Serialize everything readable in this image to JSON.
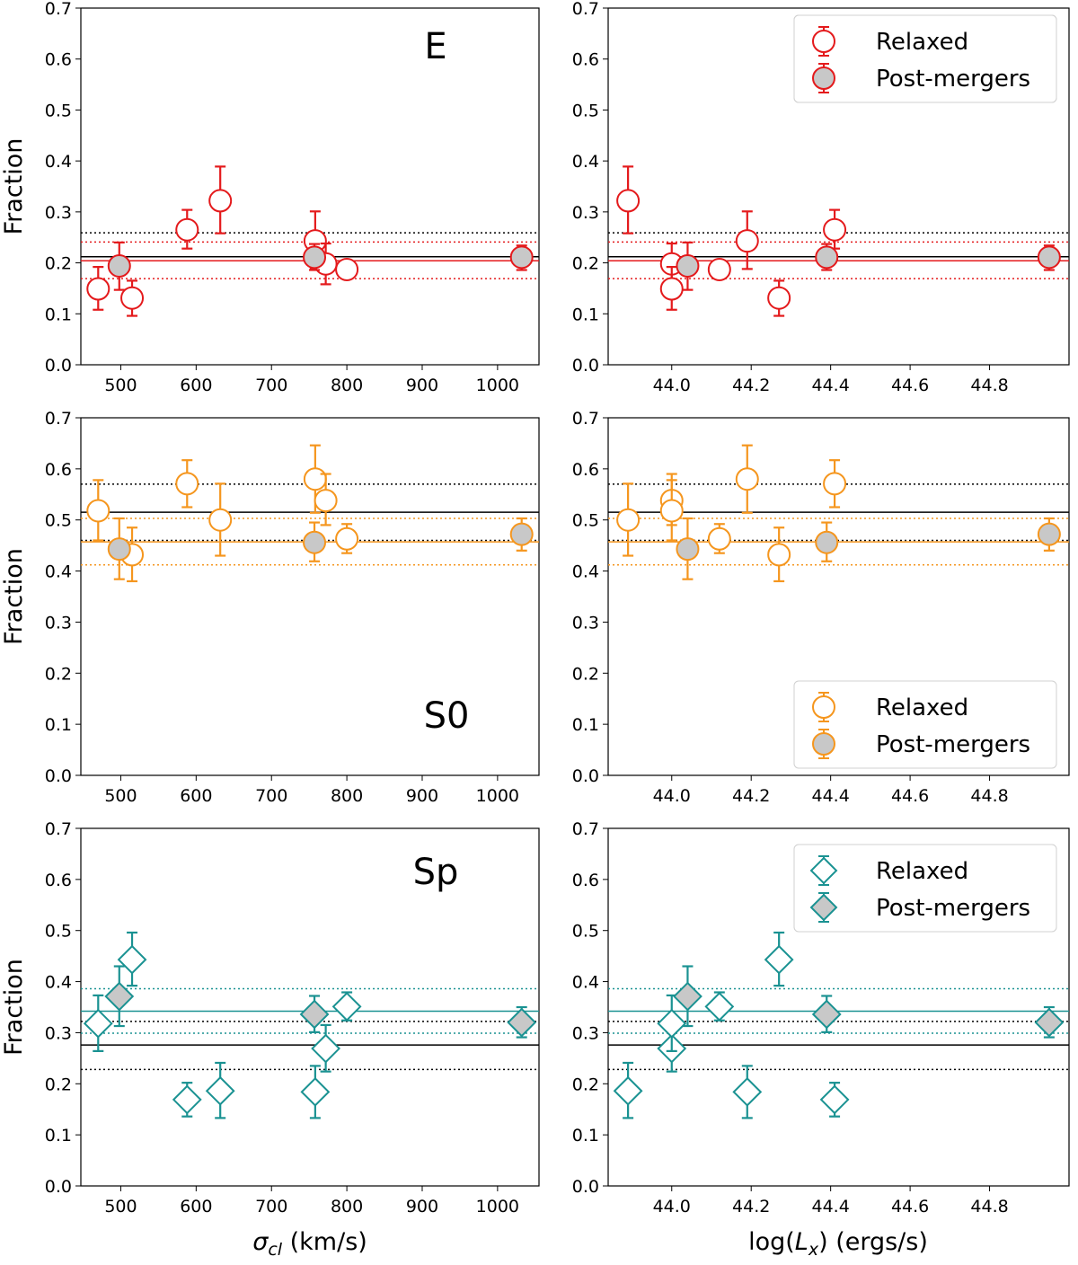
{
  "figure": {
    "xlabels": [
      "σ_cl (km/s)",
      "log(L_x) (ergs/s)"
    ]
  },
  "legend": {
    "relaxed": "Relaxed",
    "postmergers": "Post-mergers"
  },
  "chart_data": [
    {
      "type": "scatter",
      "row": 0,
      "col": 0,
      "panel_label": "E",
      "color": "#e41a1c",
      "marker": "circle",
      "ylabel": "Fraction",
      "xlabel": "",
      "xlim": [
        447,
        1055
      ],
      "ylim": [
        0,
        0.7
      ],
      "xticks": [
        500,
        600,
        700,
        800,
        900,
        1000
      ],
      "yticks": [
        0.0,
        0.1,
        0.2,
        0.3,
        0.4,
        0.5,
        0.6,
        0.7
      ],
      "relaxed": [
        {
          "x": 470,
          "y": 0.149,
          "lo": 0.108,
          "hi": 0.192
        },
        {
          "x": 515,
          "y": 0.131,
          "lo": 0.096,
          "hi": 0.165
        },
        {
          "x": 588,
          "y": 0.265,
          "lo": 0.228,
          "hi": 0.304
        },
        {
          "x": 632,
          "y": 0.322,
          "lo": 0.258,
          "hi": 0.389
        },
        {
          "x": 758,
          "y": 0.243,
          "lo": 0.188,
          "hi": 0.301
        },
        {
          "x": 772,
          "y": 0.198,
          "lo": 0.158,
          "hi": 0.238
        },
        {
          "x": 800,
          "y": 0.187,
          "lo": 0.187,
          "hi": 0.187
        }
      ],
      "postmergers": [
        {
          "x": 498,
          "y": 0.194,
          "lo": 0.147,
          "hi": 0.24
        },
        {
          "x": 757,
          "y": 0.211,
          "lo": 0.186,
          "hi": 0.237
        },
        {
          "x": 1032,
          "y": 0.211,
          "lo": 0.186,
          "hi": 0.234
        }
      ],
      "hlines": [
        {
          "y": 0.212,
          "color": "#000000",
          "style": "solid"
        },
        {
          "y": 0.259,
          "color": "#000000",
          "style": "dotted"
        },
        {
          "y": 0.204,
          "color": "#e41a1c",
          "style": "solid"
        },
        {
          "y": 0.241,
          "color": "#e41a1c",
          "style": "dotted"
        },
        {
          "y": 0.169,
          "color": "#e41a1c",
          "style": "dotted"
        }
      ],
      "legend": true
    },
    {
      "type": "scatter",
      "row": 0,
      "col": 1,
      "panel_label": "",
      "color": "#e41a1c",
      "marker": "circle",
      "ylabel": "",
      "xlabel": "",
      "xlim": [
        43.84,
        45.0
      ],
      "ylim": [
        0,
        0.7
      ],
      "xticks": [
        44.0,
        44.2,
        44.4,
        44.6,
        44.8
      ],
      "yticks": [
        0.0,
        0.1,
        0.2,
        0.3,
        0.4,
        0.5,
        0.6,
        0.7
      ],
      "relaxed": [
        {
          "x": 43.89,
          "y": 0.322,
          "lo": 0.258,
          "hi": 0.389
        },
        {
          "x": 44.0,
          "y": 0.198,
          "lo": 0.158,
          "hi": 0.238
        },
        {
          "x": 44.0,
          "y": 0.149,
          "lo": 0.108,
          "hi": 0.192
        },
        {
          "x": 44.12,
          "y": 0.187,
          "lo": 0.187,
          "hi": 0.187
        },
        {
          "x": 44.19,
          "y": 0.243,
          "lo": 0.188,
          "hi": 0.301
        },
        {
          "x": 44.27,
          "y": 0.131,
          "lo": 0.096,
          "hi": 0.165
        },
        {
          "x": 44.41,
          "y": 0.265,
          "lo": 0.228,
          "hi": 0.304
        }
      ],
      "postmergers": [
        {
          "x": 44.04,
          "y": 0.194,
          "lo": 0.147,
          "hi": 0.24
        },
        {
          "x": 44.39,
          "y": 0.211,
          "lo": 0.186,
          "hi": 0.237
        },
        {
          "x": 44.95,
          "y": 0.211,
          "lo": 0.186,
          "hi": 0.234
        }
      ],
      "hlines": [
        {
          "y": 0.212,
          "color": "#000000",
          "style": "solid"
        },
        {
          "y": 0.259,
          "color": "#000000",
          "style": "dotted"
        },
        {
          "y": 0.204,
          "color": "#e41a1c",
          "style": "solid"
        },
        {
          "y": 0.241,
          "color": "#e41a1c",
          "style": "dotted"
        },
        {
          "y": 0.169,
          "color": "#e41a1c",
          "style": "dotted"
        }
      ],
      "legend": true
    },
    {
      "type": "scatter",
      "row": 1,
      "col": 0,
      "panel_label": "S0",
      "color": "#f5961e",
      "marker": "circle",
      "ylabel": "Fraction",
      "xlabel": "",
      "xlim": [
        447,
        1055
      ],
      "ylim": [
        0,
        0.7
      ],
      "xticks": [
        500,
        600,
        700,
        800,
        900,
        1000
      ],
      "yticks": [
        0.0,
        0.1,
        0.2,
        0.3,
        0.4,
        0.5,
        0.6,
        0.7
      ],
      "relaxed": [
        {
          "x": 470,
          "y": 0.518,
          "lo": 0.46,
          "hi": 0.578
        },
        {
          "x": 515,
          "y": 0.432,
          "lo": 0.38,
          "hi": 0.485
        },
        {
          "x": 588,
          "y": 0.571,
          "lo": 0.525,
          "hi": 0.617
        },
        {
          "x": 632,
          "y": 0.5,
          "lo": 0.43,
          "hi": 0.571
        },
        {
          "x": 758,
          "y": 0.58,
          "lo": 0.514,
          "hi": 0.646
        },
        {
          "x": 772,
          "y": 0.538,
          "lo": 0.49,
          "hi": 0.59
        },
        {
          "x": 800,
          "y": 0.463,
          "lo": 0.435,
          "hi": 0.492
        }
      ],
      "postmergers": [
        {
          "x": 498,
          "y": 0.443,
          "lo": 0.384,
          "hi": 0.503
        },
        {
          "x": 757,
          "y": 0.456,
          "lo": 0.419,
          "hi": 0.495
        },
        {
          "x": 1032,
          "y": 0.472,
          "lo": 0.44,
          "hi": 0.503
        }
      ],
      "hlines": [
        {
          "y": 0.515,
          "color": "#000000",
          "style": "solid"
        },
        {
          "y": 0.57,
          "color": "#000000",
          "style": "dotted"
        },
        {
          "y": 0.46,
          "color": "#000000",
          "style": "dotted"
        },
        {
          "y": 0.457,
          "color": "#f5961e",
          "style": "solid"
        },
        {
          "y": 0.503,
          "color": "#f5961e",
          "style": "dotted"
        },
        {
          "y": 0.412,
          "color": "#f5961e",
          "style": "dotted"
        }
      ],
      "legend": false
    },
    {
      "type": "scatter",
      "row": 1,
      "col": 1,
      "panel_label": "",
      "color": "#f5961e",
      "marker": "circle",
      "ylabel": "",
      "xlabel": "",
      "xlim": [
        43.84,
        45.0
      ],
      "ylim": [
        0,
        0.7
      ],
      "xticks": [
        44.0,
        44.2,
        44.4,
        44.6,
        44.8
      ],
      "yticks": [
        0.0,
        0.1,
        0.2,
        0.3,
        0.4,
        0.5,
        0.6,
        0.7
      ],
      "relaxed": [
        {
          "x": 43.89,
          "y": 0.5,
          "lo": 0.43,
          "hi": 0.571
        },
        {
          "x": 44.0,
          "y": 0.538,
          "lo": 0.49,
          "hi": 0.59
        },
        {
          "x": 44.0,
          "y": 0.518,
          "lo": 0.46,
          "hi": 0.578
        },
        {
          "x": 44.12,
          "y": 0.463,
          "lo": 0.435,
          "hi": 0.492
        },
        {
          "x": 44.19,
          "y": 0.58,
          "lo": 0.514,
          "hi": 0.646
        },
        {
          "x": 44.27,
          "y": 0.432,
          "lo": 0.38,
          "hi": 0.485
        },
        {
          "x": 44.41,
          "y": 0.571,
          "lo": 0.525,
          "hi": 0.617
        }
      ],
      "postmergers": [
        {
          "x": 44.04,
          "y": 0.443,
          "lo": 0.384,
          "hi": 0.503
        },
        {
          "x": 44.39,
          "y": 0.456,
          "lo": 0.419,
          "hi": 0.495
        },
        {
          "x": 44.95,
          "y": 0.472,
          "lo": 0.44,
          "hi": 0.503
        }
      ],
      "hlines": [
        {
          "y": 0.515,
          "color": "#000000",
          "style": "solid"
        },
        {
          "y": 0.57,
          "color": "#000000",
          "style": "dotted"
        },
        {
          "y": 0.46,
          "color": "#000000",
          "style": "dotted"
        },
        {
          "y": 0.457,
          "color": "#f5961e",
          "style": "solid"
        },
        {
          "y": 0.503,
          "color": "#f5961e",
          "style": "dotted"
        },
        {
          "y": 0.412,
          "color": "#f5961e",
          "style": "dotted"
        }
      ],
      "legend": true
    },
    {
      "type": "scatter",
      "row": 2,
      "col": 0,
      "panel_label": "Sp",
      "color": "#1a9292",
      "marker": "diamond",
      "ylabel": "Fraction",
      "xlabel": "σ_cl (km/s)",
      "xlim": [
        447,
        1055
      ],
      "ylim": [
        0,
        0.7
      ],
      "xticks": [
        500,
        600,
        700,
        800,
        900,
        1000
      ],
      "yticks": [
        0.0,
        0.1,
        0.2,
        0.3,
        0.4,
        0.5,
        0.6,
        0.7
      ],
      "relaxed": [
        {
          "x": 470,
          "y": 0.318,
          "lo": 0.264,
          "hi": 0.373
        },
        {
          "x": 515,
          "y": 0.443,
          "lo": 0.392,
          "hi": 0.496
        },
        {
          "x": 588,
          "y": 0.169,
          "lo": 0.136,
          "hi": 0.202
        },
        {
          "x": 632,
          "y": 0.186,
          "lo": 0.133,
          "hi": 0.241
        },
        {
          "x": 758,
          "y": 0.184,
          "lo": 0.133,
          "hi": 0.235
        },
        {
          "x": 772,
          "y": 0.269,
          "lo": 0.224,
          "hi": 0.315
        },
        {
          "x": 800,
          "y": 0.351,
          "lo": 0.324,
          "hi": 0.379
        }
      ],
      "postmergers": [
        {
          "x": 498,
          "y": 0.371,
          "lo": 0.313,
          "hi": 0.43
        },
        {
          "x": 757,
          "y": 0.336,
          "lo": 0.301,
          "hi": 0.372
        },
        {
          "x": 1032,
          "y": 0.32,
          "lo": 0.291,
          "hi": 0.35
        }
      ],
      "hlines": [
        {
          "y": 0.276,
          "color": "#000000",
          "style": "solid"
        },
        {
          "y": 0.322,
          "color": "#000000",
          "style": "dotted"
        },
        {
          "y": 0.228,
          "color": "#000000",
          "style": "dotted"
        },
        {
          "y": 0.342,
          "color": "#1a9292",
          "style": "solid"
        },
        {
          "y": 0.386,
          "color": "#1a9292",
          "style": "dotted"
        },
        {
          "y": 0.299,
          "color": "#1a9292",
          "style": "dotted"
        }
      ],
      "legend": false
    },
    {
      "type": "scatter",
      "row": 2,
      "col": 1,
      "panel_label": "",
      "color": "#1a9292",
      "marker": "diamond",
      "ylabel": "",
      "xlabel": "log(L_x) (ergs/s)",
      "xlim": [
        43.84,
        45.0
      ],
      "ylim": [
        0,
        0.7
      ],
      "xticks": [
        44.0,
        44.2,
        44.4,
        44.6,
        44.8
      ],
      "yticks": [
        0.0,
        0.1,
        0.2,
        0.3,
        0.4,
        0.5,
        0.6,
        0.7
      ],
      "relaxed": [
        {
          "x": 43.89,
          "y": 0.186,
          "lo": 0.133,
          "hi": 0.241
        },
        {
          "x": 44.0,
          "y": 0.269,
          "lo": 0.224,
          "hi": 0.315
        },
        {
          "x": 44.0,
          "y": 0.318,
          "lo": 0.264,
          "hi": 0.373
        },
        {
          "x": 44.12,
          "y": 0.351,
          "lo": 0.324,
          "hi": 0.379
        },
        {
          "x": 44.19,
          "y": 0.184,
          "lo": 0.133,
          "hi": 0.235
        },
        {
          "x": 44.27,
          "y": 0.443,
          "lo": 0.392,
          "hi": 0.496
        },
        {
          "x": 44.41,
          "y": 0.169,
          "lo": 0.136,
          "hi": 0.202
        }
      ],
      "postmergers": [
        {
          "x": 44.04,
          "y": 0.371,
          "lo": 0.313,
          "hi": 0.43
        },
        {
          "x": 44.39,
          "y": 0.336,
          "lo": 0.301,
          "hi": 0.372
        },
        {
          "x": 44.95,
          "y": 0.32,
          "lo": 0.291,
          "hi": 0.35
        }
      ],
      "hlines": [
        {
          "y": 0.276,
          "color": "#000000",
          "style": "solid"
        },
        {
          "y": 0.322,
          "color": "#000000",
          "style": "dotted"
        },
        {
          "y": 0.228,
          "color": "#000000",
          "style": "dotted"
        },
        {
          "y": 0.342,
          "color": "#1a9292",
          "style": "solid"
        },
        {
          "y": 0.386,
          "color": "#1a9292",
          "style": "dotted"
        },
        {
          "y": 0.299,
          "color": "#1a9292",
          "style": "dotted"
        }
      ],
      "legend": true
    }
  ]
}
